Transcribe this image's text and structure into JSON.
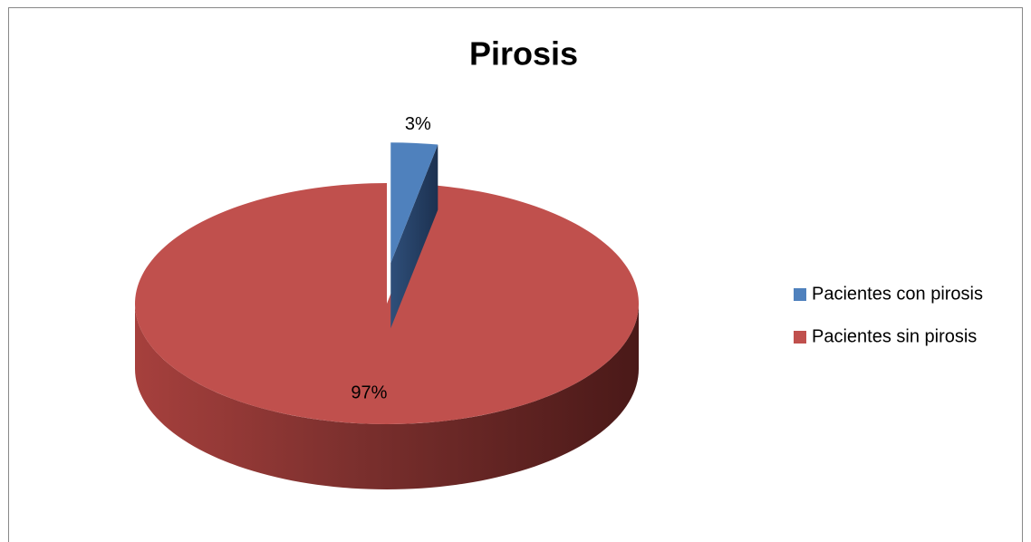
{
  "chart_data": {
    "type": "pie",
    "title": "Pirosis",
    "categories": [
      "Pacientes con pirosis",
      "Pacientes sin pirosis"
    ],
    "values": [
      3,
      97
    ],
    "value_labels": [
      "3%",
      "97%"
    ],
    "colors": [
      "#4f81bd",
      "#c0504d"
    ],
    "explode": [
      true,
      false
    ],
    "legend": "right"
  }
}
